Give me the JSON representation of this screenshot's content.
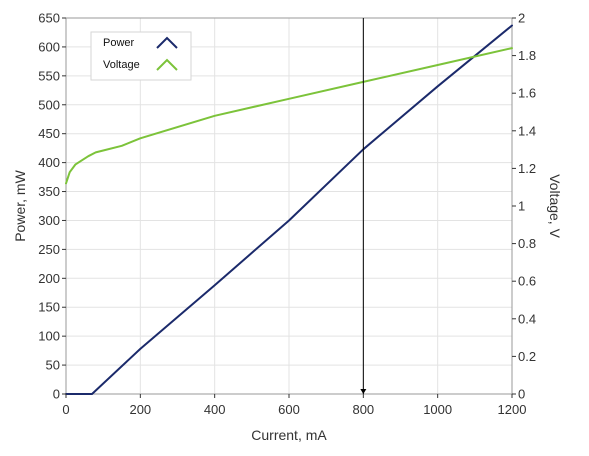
{
  "chart_data": {
    "type": "line",
    "xlabel": "Current, mA",
    "ylabel_left": "Power, mW",
    "ylabel_right": "Voltage, V",
    "xlim": [
      0,
      1200
    ],
    "ylim_left": [
      0,
      650
    ],
    "ylim_right": [
      0,
      2
    ],
    "x_ticks": [
      "0",
      "200",
      "400",
      "600",
      "800",
      "1000",
      "1200"
    ],
    "y_left_ticks": [
      "0",
      "50",
      "100",
      "150",
      "200",
      "250",
      "300",
      "350",
      "400",
      "450",
      "500",
      "550",
      "600",
      "650"
    ],
    "y_right_ticks": [
      "0",
      "0.2",
      "0.4",
      "0.6",
      "0.8",
      "1",
      "1.2",
      "1.4",
      "1.6",
      "1.8",
      "2"
    ],
    "grid": true,
    "legend": "top-left",
    "cursor_x": 800,
    "series": [
      {
        "name": "Power",
        "axis": "left",
        "color": "#1b2a6b",
        "x": [
          0,
          70,
          200,
          400,
          600,
          800,
          1000,
          1200
        ],
        "y": [
          0,
          0,
          78,
          188,
          300,
          423,
          532,
          637
        ]
      },
      {
        "name": "Voltage",
        "axis": "right",
        "color": "#7cc33a",
        "x": [
          0,
          10,
          25,
          40,
          60,
          80,
          100,
          150,
          200,
          400,
          600,
          800,
          1000,
          1200
        ],
        "y": [
          1.12,
          1.18,
          1.22,
          1.24,
          1.265,
          1.285,
          1.295,
          1.32,
          1.36,
          1.48,
          1.57,
          1.66,
          1.75,
          1.84
        ]
      }
    ]
  }
}
